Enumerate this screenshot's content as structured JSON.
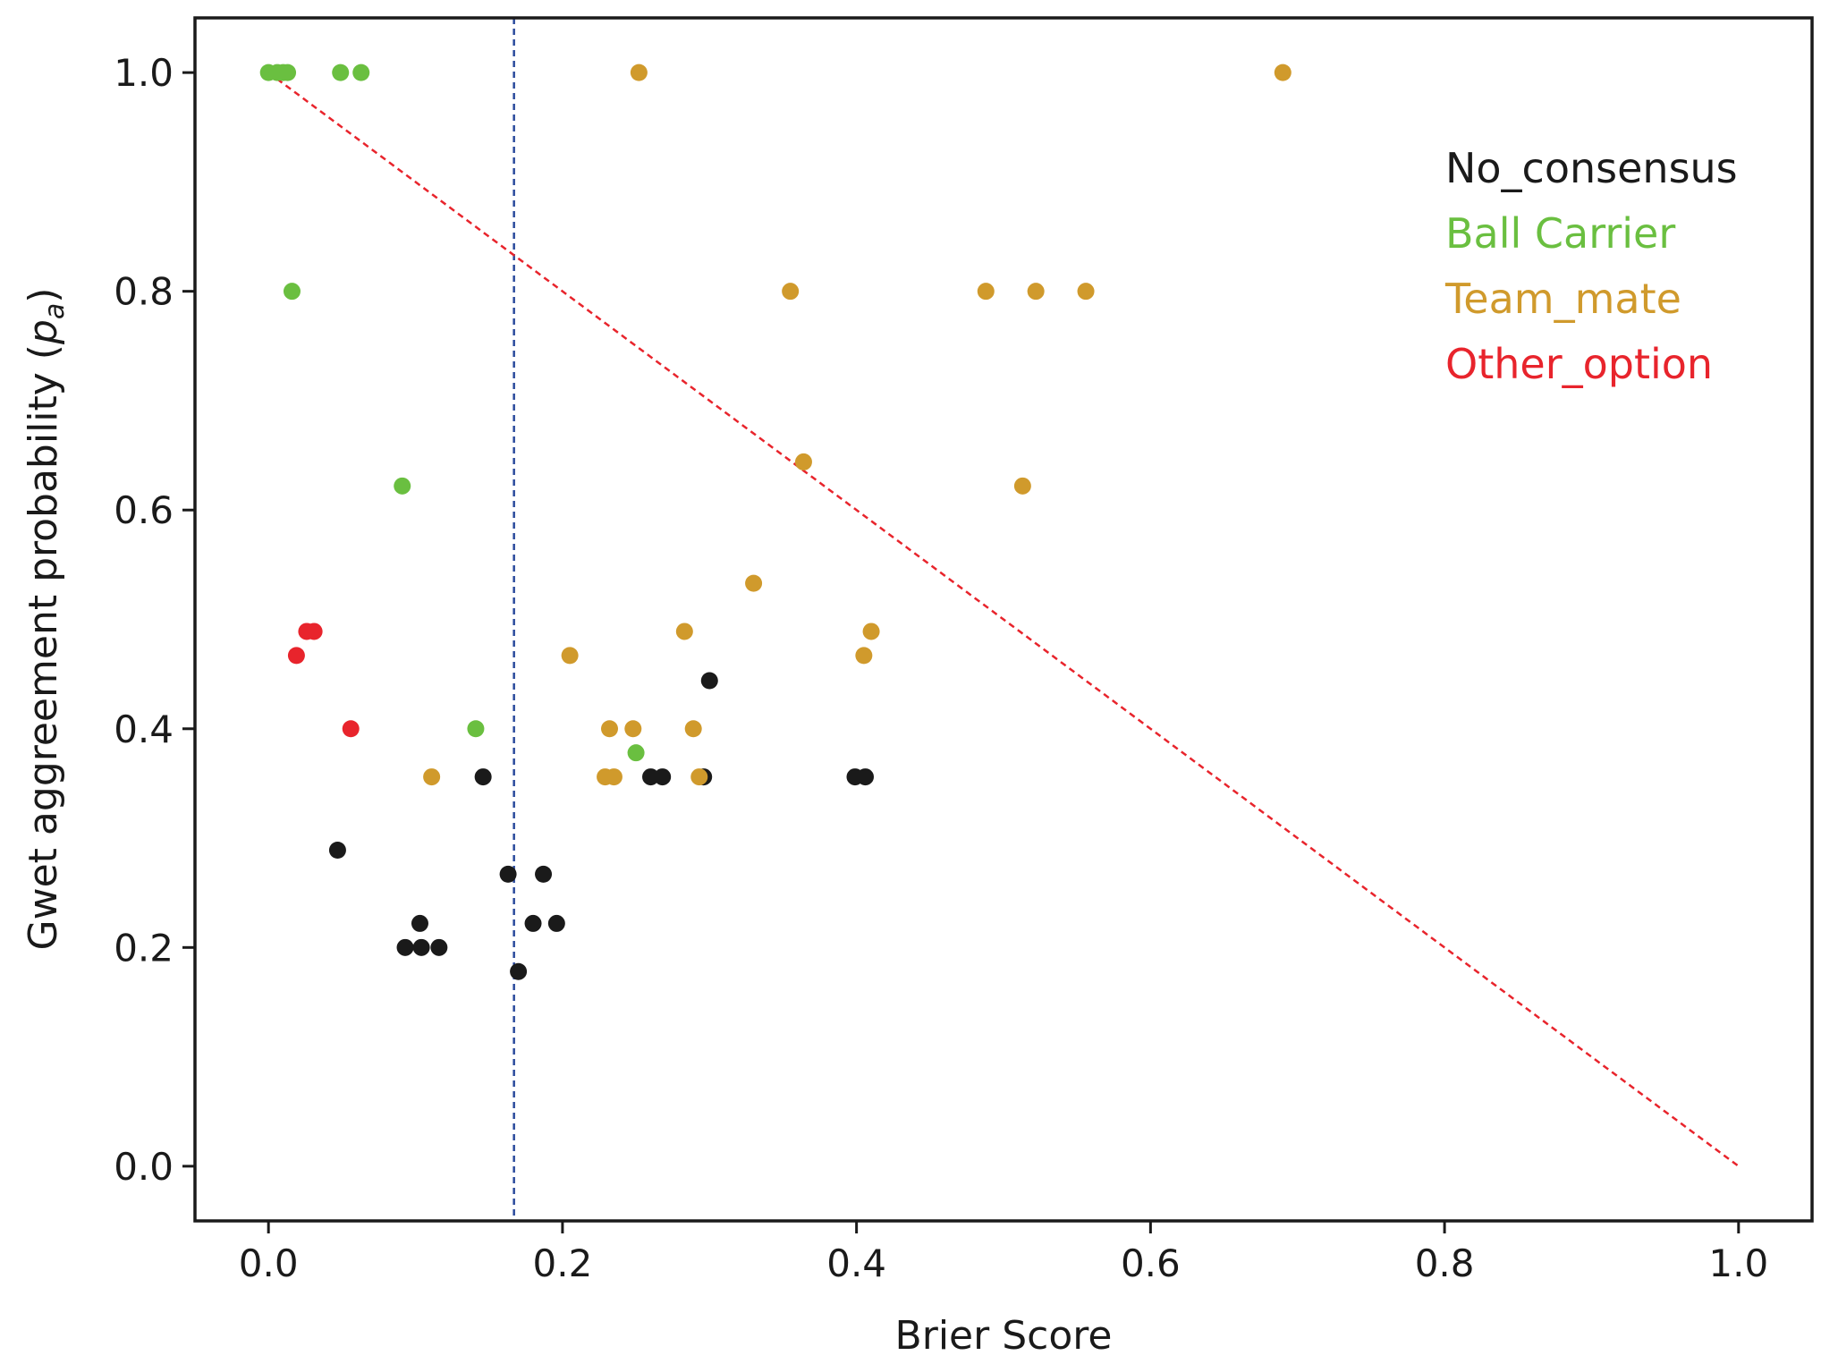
{
  "chart_data": {
    "type": "scatter",
    "title": "",
    "xlabel": "Brier Score",
    "ylabel": "Gwet aggreement probability (",
    "ylabel_symbol": "p",
    "ylabel_subscript": "a",
    "ylabel_close": ")",
    "xlim": [
      -0.05,
      1.05
    ],
    "ylim": [
      -0.05,
      1.05
    ],
    "xticks": [
      0.0,
      0.2,
      0.4,
      0.6,
      0.8,
      1.0
    ],
    "yticks": [
      0.0,
      0.2,
      0.4,
      0.6,
      0.8,
      1.0
    ],
    "xtick_labels": [
      "0.0",
      "0.2",
      "0.4",
      "0.6",
      "0.8",
      "1.0"
    ],
    "ytick_labels": [
      "0.0",
      "0.2",
      "0.4",
      "0.6",
      "0.8",
      "1.0"
    ],
    "grid": false,
    "legend_position": "top-right",
    "reference_lines": [
      {
        "kind": "vertical",
        "x": 0.167,
        "color": "#2a4a9c",
        "style": "dashed"
      },
      {
        "kind": "diagonal",
        "from": [
          0.0,
          1.0
        ],
        "to": [
          1.0,
          0.0
        ],
        "color": "#e8242c",
        "style": "dashed"
      }
    ],
    "series": [
      {
        "name": "No_consensus",
        "color": "#1a1a1a",
        "x": [
          0.047,
          0.093,
          0.104,
          0.116,
          0.103,
          0.146,
          0.163,
          0.17,
          0.18,
          0.187,
          0.196,
          0.26,
          0.268,
          0.296,
          0.3,
          0.399,
          0.406
        ],
        "y": [
          0.289,
          0.2,
          0.2,
          0.2,
          0.222,
          0.356,
          0.267,
          0.178,
          0.222,
          0.267,
          0.222,
          0.356,
          0.356,
          0.356,
          0.444,
          0.356,
          0.356
        ]
      },
      {
        "name": "Ball Carrier",
        "color": "#6abf40",
        "x": [
          0.0,
          0.006,
          0.01,
          0.013,
          0.049,
          0.063,
          0.016,
          0.091,
          0.141,
          0.25
        ],
        "y": [
          1.0,
          1.0,
          1.0,
          1.0,
          1.0,
          1.0,
          0.8,
          0.622,
          0.4,
          0.378
        ]
      },
      {
        "name": "Team_mate",
        "color": "#d09a2c",
        "x": [
          0.252,
          0.69,
          0.355,
          0.488,
          0.522,
          0.556,
          0.364,
          0.513,
          0.33,
          0.283,
          0.41,
          0.205,
          0.405,
          0.232,
          0.248,
          0.289,
          0.111,
          0.229,
          0.235,
          0.293
        ],
        "y": [
          1.0,
          1.0,
          0.8,
          0.8,
          0.8,
          0.8,
          0.644,
          0.622,
          0.533,
          0.489,
          0.489,
          0.467,
          0.467,
          0.4,
          0.4,
          0.4,
          0.356,
          0.356,
          0.356,
          0.356
        ]
      },
      {
        "name": "Other_option",
        "color": "#e8242c",
        "x": [
          0.019,
          0.026,
          0.031,
          0.056
        ],
        "y": [
          0.467,
          0.489,
          0.489,
          0.4
        ]
      }
    ]
  }
}
